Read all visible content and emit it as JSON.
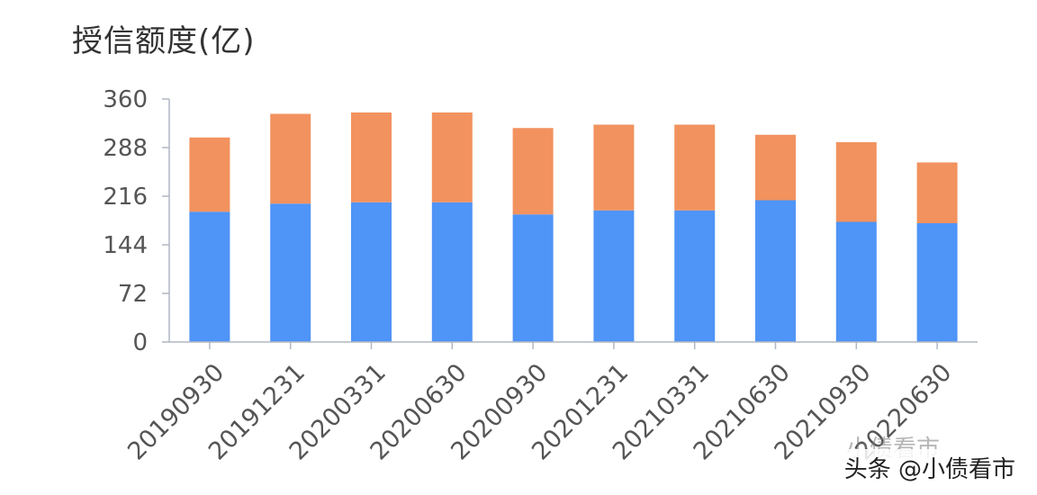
{
  "chart_data": {
    "type": "bar",
    "stacked": true,
    "title": "授信额度(亿)",
    "categories": [
      "20190930",
      "20191231",
      "20200331",
      "20200630",
      "20200930",
      "20201231",
      "20210331",
      "20210630",
      "20210930",
      "20220630"
    ],
    "series": [
      {
        "values": [
          193,
          205,
          207,
          207,
          189,
          195,
          195,
          210,
          178,
          176
        ],
        "color": "#4f94f7"
      },
      {
        "values": [
          110,
          133,
          133,
          133,
          128,
          127,
          127,
          97,
          118,
          90
        ],
        "color": "#f2925e"
      }
    ],
    "yticks": [
      0,
      72,
      144,
      216,
      288,
      360
    ],
    "ylim": [
      0,
      360
    ],
    "legend": "none",
    "grid": false
  },
  "watermark": {
    "text": "头条 @小债看市",
    "faint_text": "小债看市"
  }
}
